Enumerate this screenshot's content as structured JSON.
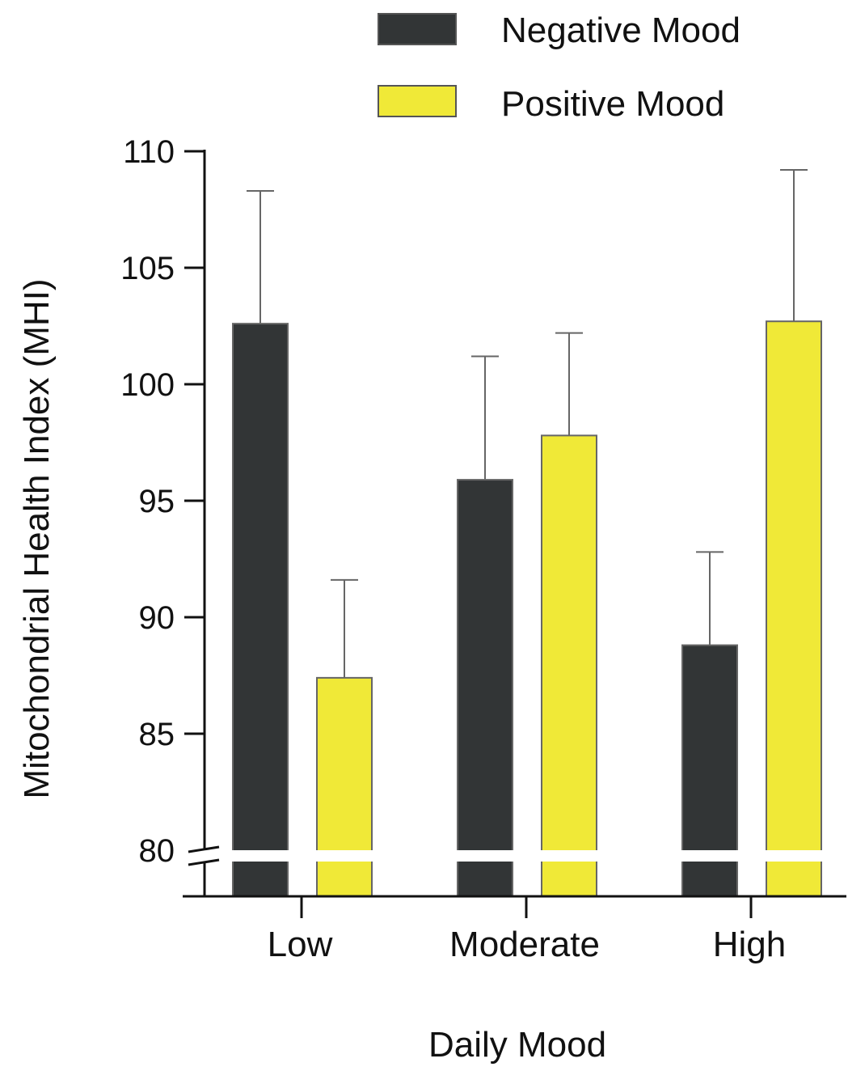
{
  "chart_data": {
    "type": "bar",
    "xlabel": "Daily Mood",
    "ylabel": "Mitochondrial Health Index (MHI)",
    "categories": [
      "Low",
      "Moderate",
      "High"
    ],
    "ylim": [
      78,
      110
    ],
    "yticks": [
      80,
      85,
      90,
      95,
      100,
      105,
      110
    ],
    "axis_break_at": 80,
    "legend_position": "top-right",
    "series": [
      {
        "name": "Negative Mood",
        "color": "#323536",
        "values": [
          102.6,
          95.9,
          88.8
        ],
        "errors": [
          5.7,
          5.3,
          4.0
        ]
      },
      {
        "name": "Positive Mood",
        "color": "#f0e937",
        "values": [
          87.4,
          97.8,
          102.7
        ],
        "errors": [
          4.2,
          4.4,
          6.5
        ]
      }
    ]
  }
}
